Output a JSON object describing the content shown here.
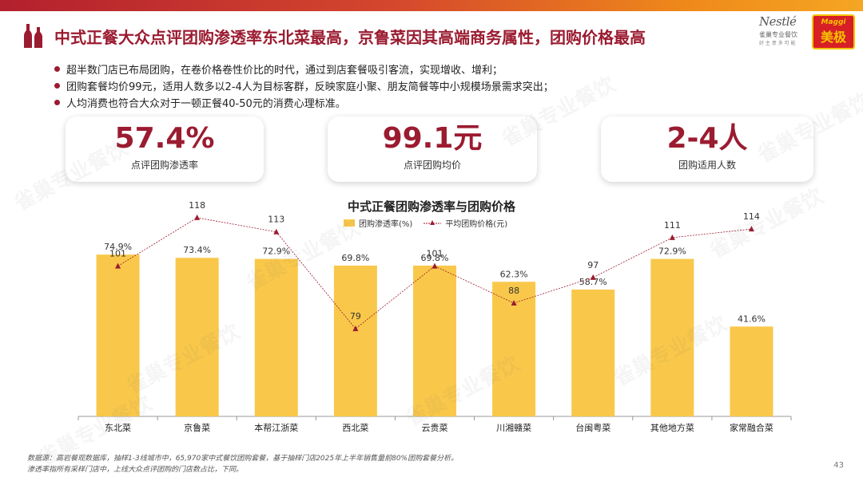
{
  "title": "中式正餐大众点评团购渗透率东北菜最高，京鲁菜因其高端商务属性，团购价格最高",
  "logos": {
    "nestle_word": "Nestlé",
    "nestle_cn": "雀巢专业餐饮",
    "nestle_slogan": "好 主 意 多 可 能",
    "maggi_word": "Maggi",
    "maggi_cn": "美极"
  },
  "bullets": [
    "超半数门店已布局团购，在卷价格卷性价比的时代，通过到店套餐吸引客流，实现增收、增利；",
    "团购套餐均价99元，适用人数多以2-4人为目标客群，反映家庭小聚、朋友简餐等中小规模场景需求突出；",
    "人均消费也符合大众对于一顿正餐40-50元的消费心理标准。"
  ],
  "kpis": [
    {
      "value": "57.4%",
      "label": "点评团购渗透率"
    },
    {
      "value": "99.1元",
      "label": "点评团购均价"
    },
    {
      "value": "2-4人",
      "label": "团购适用人数"
    }
  ],
  "chart_data": {
    "type": "bar",
    "title": "中式正餐团购渗透率与团购价格",
    "categories": [
      "东北菜",
      "京鲁菜",
      "本帮江浙菜",
      "西北菜",
      "云贵菜",
      "川湘赣菜",
      "台闽粤菜",
      "其他地方菜",
      "家常融合菜"
    ],
    "series": [
      {
        "name": "团购渗透率(%)",
        "type": "bar",
        "values": [
          74.9,
          73.4,
          72.9,
          69.8,
          69.8,
          62.3,
          58.7,
          72.9,
          41.6
        ],
        "labels": [
          "74.9%",
          "73.4%",
          "72.9%",
          "69.8%",
          "69.8%",
          "62.3%",
          "58.7%",
          "72.9%",
          "41.6%"
        ],
        "color": "#f9c84a"
      },
      {
        "name": "平均团购价格(元)",
        "type": "line",
        "values": [
          101,
          118,
          113,
          79,
          101,
          88,
          97,
          111,
          114
        ],
        "color": "#9b1b30"
      }
    ],
    "ylim_bar": [
      0,
      100
    ],
    "ylim_line": [
      0,
      130
    ]
  },
  "footnote": [
    "数据源：高岩餐观数据库，抽样1-3线城市中，65,970家中式餐饮团购套餐，基于抽样门店2025年上半年销售量前80%团购套餐分析。",
    "渗透率指所有采样门店中，上线大众点评团购的门店数占比，下同。"
  ],
  "page_number": "43",
  "watermark_text": "雀巢专业餐饮",
  "colors": {
    "accent": "#9b1b30",
    "bar": "#f9c84a",
    "line": "#9b1b30"
  }
}
